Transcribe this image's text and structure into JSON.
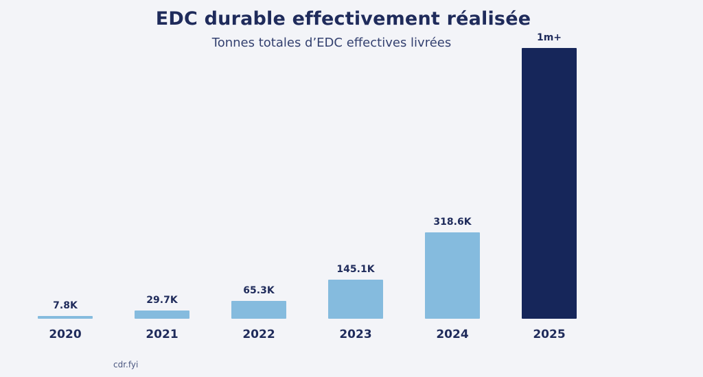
{
  "chart_data": {
    "type": "bar",
    "title": "EDC durable effectivement réalisée",
    "subtitle": "Tonnes totales d’EDC effectives livrées",
    "source": "cdr.fyi",
    "categories": [
      "2020",
      "2021",
      "2022",
      "2023",
      "2024",
      "2025"
    ],
    "values": [
      7800,
      29700,
      65300,
      145100,
      318600,
      1000000
    ],
    "value_labels": [
      "7.8K",
      "29.7K",
      "65.3K",
      "145.1K",
      "318.6K",
      "1m+"
    ],
    "ylim": [
      0,
      1000000
    ],
    "grid": false,
    "legend": "none",
    "axis_lines": false,
    "bar_colors": [
      "#85bbde",
      "#85bbde",
      "#85bbde",
      "#85bbde",
      "#85bbde",
      "#16265a"
    ]
  },
  "colors": {
    "background": "#f3f4f8",
    "bar_light": "#85bbde",
    "bar_highlight": "#16265a",
    "title_text": "#1f2b5b",
    "subtitle_text": "#33406f",
    "source_text": "#4a567f"
  }
}
